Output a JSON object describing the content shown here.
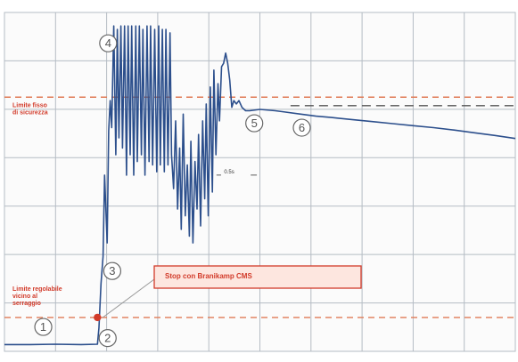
{
  "chart_data": {
    "type": "line",
    "title": "",
    "xlabel": "",
    "ylabel": "",
    "xlim": [
      0,
      100
    ],
    "ylim": [
      0,
      100
    ],
    "grid": true,
    "x": [
      0,
      5,
      10,
      15,
      18.2,
      18.5,
      18.9,
      19.3,
      19.6,
      20.1,
      20.4,
      20.7,
      21.0,
      21.4,
      21.8,
      22.1,
      22.4,
      22.8,
      23.1,
      23.5,
      23.9,
      24.2,
      24.6,
      24.9,
      25.3,
      25.7,
      26.0,
      26.4,
      26.8,
      27.1,
      27.5,
      27.9,
      28.3,
      28.6,
      29.0,
      29.4,
      29.8,
      30.2,
      30.5,
      30.9,
      31.3,
      31.6,
      32.0,
      32.4,
      32.7,
      33.1,
      33.5,
      33.9,
      34.3,
      34.6,
      35.0,
      35.4,
      35.8,
      36.2,
      36.5,
      36.9,
      37.3,
      37.7,
      38.0,
      38.4,
      38.8,
      39.2,
      39.5,
      39.9,
      40.3,
      40.7,
      41.0,
      41.4,
      41.8,
      42.1,
      42.5,
      42.9,
      43.3,
      43.7,
      44.1,
      44.5,
      44.9,
      45.4,
      45.9,
      46.5,
      47.2,
      48,
      50,
      53,
      55,
      58,
      61,
      64,
      68,
      72,
      76,
      80,
      84,
      88,
      92,
      96,
      100
    ],
    "y": [
      2.0,
      2.0,
      2.1,
      2.0,
      2.1,
      7,
      20,
      28,
      52,
      32,
      65,
      74,
      66,
      96,
      58,
      95,
      63,
      96,
      60,
      96,
      52,
      96,
      58,
      96,
      52,
      96,
      56,
      96,
      58,
      95,
      52,
      96,
      56,
      96,
      55,
      95,
      53,
      96,
      55,
      95,
      53,
      95,
      55,
      94,
      58,
      48,
      68,
      42,
      60,
      36,
      70,
      40,
      55,
      34,
      62,
      32,
      56,
      42,
      64,
      37,
      68,
      45,
      73,
      40,
      78,
      47,
      83,
      58,
      79,
      68,
      84,
      85,
      88,
      85,
      80,
      72,
      74,
      73,
      74,
      72,
      71,
      71,
      71.4,
      71.0,
      70.6,
      70.0,
      69.4,
      69.0,
      68.4,
      67.8,
      67.2,
      66.6,
      66.0,
      65.3,
      64.5,
      63.7,
      62.8
    ]
  },
  "annotations": {
    "high_threshold_label": "Limite fisso di sicurezza",
    "adjustable_threshold_label": "Limite regolabile vicino al serraggio",
    "callout_text": "Stop con Branikamp CMS",
    "mid_note": "0.5s",
    "markers": [
      "1",
      "2",
      "3",
      "4",
      "5",
      "6"
    ]
  },
  "colors": {
    "trace": "#2c4f8c",
    "threshold": "#e07a55",
    "grid": "#b5bcc4",
    "label": "#d23b2a",
    "marker_outline": "#666666",
    "callout_border": "#d23b2a",
    "callout_fill": "#fde6df"
  },
  "thresholds": {
    "high_y": 75,
    "adjustable_y": 10,
    "right_dashed_y": 72.5
  }
}
